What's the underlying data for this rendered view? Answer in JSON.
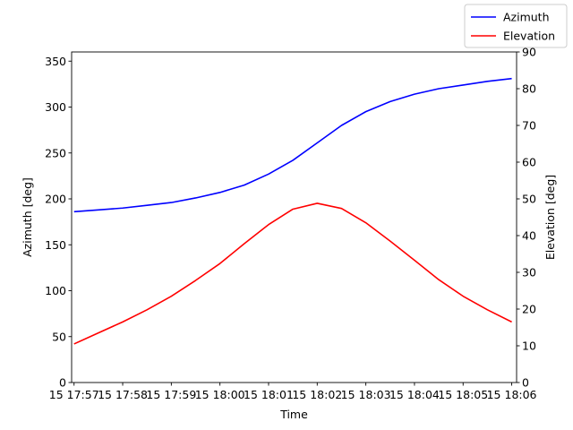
{
  "chart_data": {
    "type": "line",
    "xlabel": "Time",
    "ylabel_left": "Azimuth [deg]",
    "ylabel_right": "Elevation [deg]",
    "x_tick_labels": [
      "15 17:57",
      "15 17:58",
      "15 17:59",
      "15 18:00",
      "15 18:01",
      "15 18:02",
      "15 18:03",
      "15 18:04",
      "15 18:05",
      "15 18:06"
    ],
    "x_ticks_min": [
      0,
      1,
      2,
      3,
      4,
      5,
      6,
      7,
      8,
      9
    ],
    "xlim_min": [
      -0.05,
      9.1
    ],
    "left_axis": {
      "ylim": [
        0,
        360
      ],
      "ticks": [
        0,
        50,
        100,
        150,
        200,
        250,
        300,
        350
      ]
    },
    "right_axis": {
      "ylim": [
        0,
        90
      ],
      "ticks": [
        0,
        10,
        20,
        30,
        40,
        50,
        60,
        70,
        80,
        90
      ]
    },
    "x_min": [
      0.0,
      0.5,
      1.0,
      1.5,
      2.0,
      2.5,
      3.0,
      3.5,
      4.0,
      4.5,
      5.0,
      5.5,
      6.0,
      6.5,
      7.0,
      7.5,
      8.0,
      8.5,
      9.0
    ],
    "series": [
      {
        "name": "Azimuth",
        "axis": "left",
        "color": "#0000ff",
        "values": [
          186,
          188,
          190,
          193,
          196,
          201,
          207,
          215,
          227,
          242,
          261,
          280,
          295,
          306,
          314,
          320,
          324,
          328,
          331
        ]
      },
      {
        "name": "Elevation",
        "axis": "right",
        "color": "#ff0000",
        "values": [
          10.5,
          13.5,
          16.5,
          19.8,
          23.5,
          27.8,
          32.4,
          37.8,
          43.0,
          47.2,
          48.8,
          47.4,
          43.5,
          38.5,
          33.3,
          28.0,
          23.5,
          19.8,
          16.5
        ]
      }
    ],
    "legend_position": "top-right",
    "grid": false
  }
}
